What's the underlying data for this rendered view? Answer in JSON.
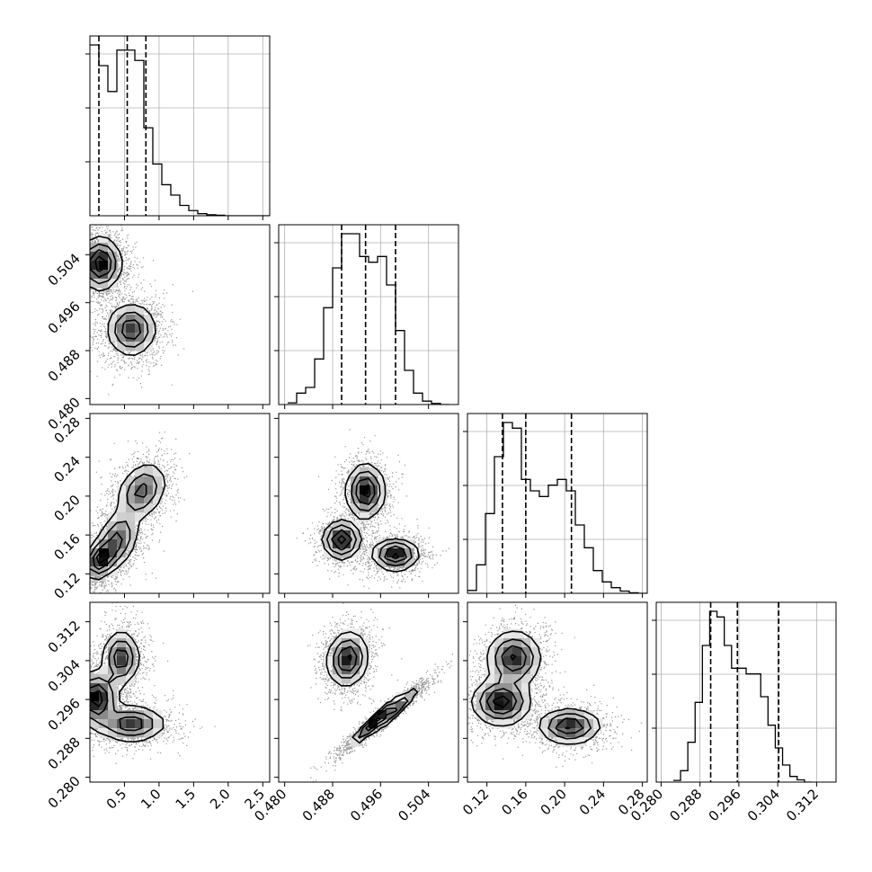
{
  "chart_data": {
    "type": "corner",
    "grid": true,
    "variables": [
      {
        "range": [
          0,
          2.6
        ],
        "ticks": [
          0.5,
          1.0,
          1.5,
          2.0,
          2.5
        ],
        "tick_labels": [
          "0.5",
          "1.0",
          "1.5",
          "2.0",
          "2.5"
        ],
        "quantiles": [
          0.13,
          0.54,
          0.81
        ],
        "hist_edges_start": 0.0,
        "hist_bin_width": 0.13,
        "hist_counts": [
          33,
          29,
          24,
          32,
          32,
          30,
          17,
          10,
          6,
          4,
          2,
          1,
          0.4,
          0.2,
          0.1,
          0,
          0,
          0,
          0,
          0
        ]
      },
      {
        "range": [
          0.479,
          0.509
        ],
        "ticks": [
          0.48,
          0.488,
          0.496,
          0.504
        ],
        "tick_labels": [
          "0.480",
          "0.488",
          "0.496",
          "0.504"
        ],
        "quantiles": [
          0.4895,
          0.4935,
          0.4985
        ],
        "hist_edges_start": 0.4805,
        "hist_bin_width": 0.0015,
        "hist_counts": [
          0.3,
          2,
          3,
          8,
          17,
          24,
          30,
          30,
          26,
          25,
          26,
          21,
          13,
          6,
          2,
          0.6,
          0.2,
          0
        ]
      },
      {
        "range": [
          0.1,
          0.285
        ],
        "ticks": [
          0.12,
          0.16,
          0.2,
          0.24,
          0.28
        ],
        "tick_labels": [
          "0.12",
          "0.16",
          "0.20",
          "0.24",
          "0.28"
        ],
        "quantiles": [
          0.136,
          0.16,
          0.207
        ],
        "hist_edges_start": 0.1,
        "hist_bin_width": 0.00925,
        "hist_counts": [
          0.5,
          5,
          14,
          24,
          30,
          29,
          20,
          18,
          17,
          19,
          20,
          18,
          12,
          8,
          4,
          2,
          1,
          0.4,
          0.1,
          0
        ]
      },
      {
        "range": [
          0.279,
          0.316
        ],
        "ticks": [
          0.28,
          0.288,
          0.296,
          0.304,
          0.312
        ],
        "tick_labels": [
          "0.280",
          "0.288",
          "0.296",
          "0.304",
          "0.312"
        ],
        "quantiles": [
          0.2902,
          0.2957,
          0.3042
        ],
        "hist_edges_start": 0.2825,
        "hist_bin_width": 0.0015,
        "hist_counts": [
          0.3,
          2,
          7,
          14,
          24,
          30,
          29,
          24,
          20,
          20,
          19,
          19,
          15,
          10,
          6,
          3,
          1,
          0.4,
          0
        ]
      }
    ],
    "pairs": [
      {
        "x": 0,
        "y": 1,
        "modes": [
          {
            "cx": 0.15,
            "cy": 0.5025,
            "sx": 0.15,
            "sy": 0.0022,
            "r": 0.0,
            "w": 1.0
          },
          {
            "cx": 0.6,
            "cy": 0.4915,
            "sx": 0.18,
            "sy": 0.0022,
            "r": 0.0,
            "w": 0.8
          }
        ]
      },
      {
        "x": 0,
        "y": 2,
        "modes": [
          {
            "cx": 0.15,
            "cy": 0.135,
            "sx": 0.12,
            "sy": 0.01,
            "r": 0.3,
            "w": 0.8
          },
          {
            "cx": 0.4,
            "cy": 0.155,
            "sx": 0.15,
            "sy": 0.015,
            "r": 0.3,
            "w": 0.6
          },
          {
            "cx": 0.75,
            "cy": 0.205,
            "sx": 0.18,
            "sy": 0.015,
            "r": 0.3,
            "w": 0.6
          }
        ]
      },
      {
        "x": 1,
        "y": 2,
        "modes": [
          {
            "cx": 0.4935,
            "cy": 0.205,
            "sx": 0.0016,
            "sy": 0.014,
            "r": 0.0,
            "w": 1.0
          },
          {
            "cx": 0.4895,
            "cy": 0.155,
            "sx": 0.0016,
            "sy": 0.01,
            "r": 0.0,
            "w": 1.0
          },
          {
            "cx": 0.4985,
            "cy": 0.14,
            "sx": 0.0019,
            "sy": 0.008,
            "r": 0.0,
            "w": 1.0
          }
        ]
      },
      {
        "x": 0,
        "y": 3,
        "modes": [
          {
            "cx": 0.1,
            "cy": 0.2962,
            "sx": 0.15,
            "sy": 0.0028,
            "r": 0.0,
            "w": 1.0
          },
          {
            "cx": 0.45,
            "cy": 0.3045,
            "sx": 0.13,
            "sy": 0.0028,
            "r": 0.0,
            "w": 0.8
          },
          {
            "cx": 0.6,
            "cy": 0.291,
            "sx": 0.25,
            "sy": 0.0018,
            "r": 0.0,
            "w": 0.8
          }
        ]
      },
      {
        "x": 1,
        "y": 3,
        "modes": [
          {
            "cx": 0.4905,
            "cy": 0.3043,
            "sx": 0.0017,
            "sy": 0.0028,
            "r": 0.1,
            "w": 1.0
          },
          {
            "cx": 0.4965,
            "cy": 0.2925,
            "sx": 0.0028,
            "sy": 0.0028,
            "r": 0.96,
            "w": 1.3
          }
        ]
      },
      {
        "x": 2,
        "y": 3,
        "modes": [
          {
            "cx": 0.135,
            "cy": 0.2955,
            "sx": 0.015,
            "sy": 0.0024,
            "r": 0.0,
            "w": 1.0
          },
          {
            "cx": 0.148,
            "cy": 0.3045,
            "sx": 0.014,
            "sy": 0.0028,
            "r": 0.0,
            "w": 0.9
          },
          {
            "cx": 0.205,
            "cy": 0.2905,
            "sx": 0.016,
            "sy": 0.0018,
            "r": 0.0,
            "w": 0.9
          }
        ]
      }
    ]
  }
}
